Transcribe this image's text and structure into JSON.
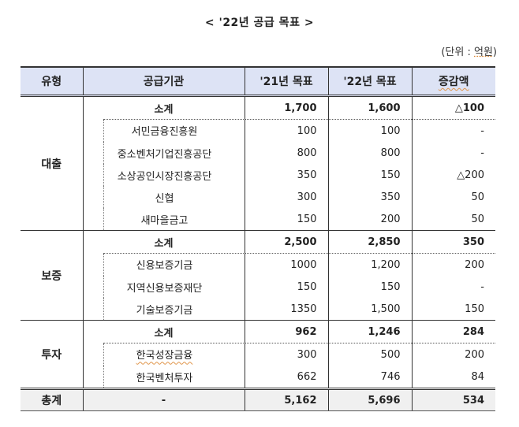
{
  "title": "< '22년 공급 목표 >",
  "unit": {
    "prefix": "(단위 : ",
    "value": "억원",
    "suffix": ")"
  },
  "headers": [
    "유형",
    "공급기관",
    "'21년 목표",
    "'22년 목표",
    "증감액"
  ],
  "groups": [
    {
      "type": "대출",
      "subtotal": {
        "label": "소계",
        "y21": "1,700",
        "y22": "1,600",
        "diff": "△100"
      },
      "items": [
        {
          "name": "서민금융진흥원",
          "y21": "100",
          "y22": "100",
          "diff": "-"
        },
        {
          "name": "중소벤처기업진흥공단",
          "y21": "800",
          "y22": "800",
          "diff": "-"
        },
        {
          "name": "소상공인시장진흥공단",
          "y21": "350",
          "y22": "150",
          "diff": "△200"
        },
        {
          "name": "신협",
          "y21": "300",
          "y22": "350",
          "diff": "50"
        },
        {
          "name": "새마을금고",
          "y21": "150",
          "y22": "200",
          "diff": "50"
        }
      ]
    },
    {
      "type": "보증",
      "subtotal": {
        "label": "소계",
        "y21": "2,500",
        "y22": "2,850",
        "diff": "350"
      },
      "items": [
        {
          "name": "신용보증기금",
          "y21": "1000",
          "y22": "1,200",
          "diff": "200"
        },
        {
          "name": "지역신용보증재단",
          "y21": "150",
          "y22": "150",
          "diff": "-"
        },
        {
          "name": "기술보증기금",
          "y21": "1350",
          "y22": "1,500",
          "diff": "150"
        }
      ]
    },
    {
      "type": "투자",
      "subtotal": {
        "label": "소계",
        "y21": "962",
        "y22": "1,246",
        "diff": "284"
      },
      "items": [
        {
          "name": "한국성장금융",
          "y21": "300",
          "y22": "500",
          "diff": "200"
        },
        {
          "name": "한국벤처투자",
          "y21": "662",
          "y22": "746",
          "diff": "84"
        }
      ]
    }
  ],
  "total": {
    "label": "총계",
    "inst": "-",
    "y21": "5,162",
    "y22": "5,696",
    "diff": "534"
  }
}
